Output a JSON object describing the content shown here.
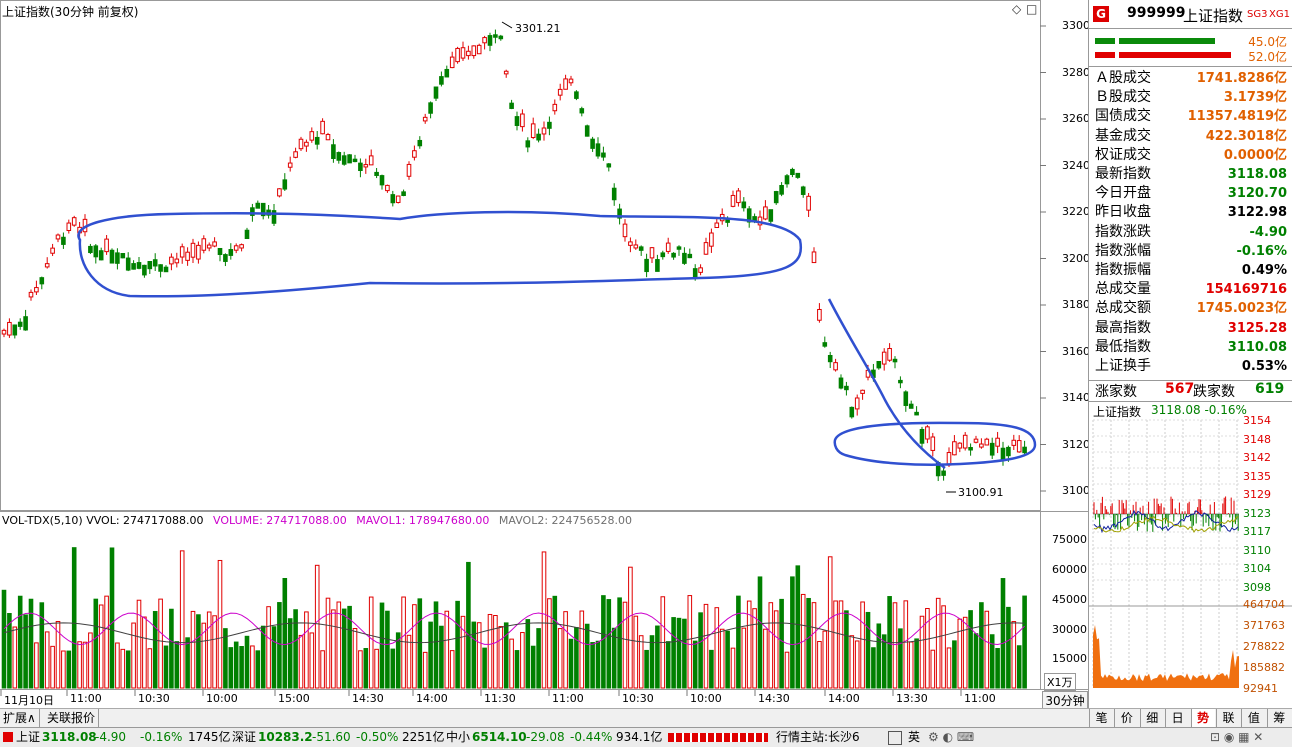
{
  "chart_title": "上证指数(30分钟 前复权)",
  "window_icons": [
    "◇",
    "□"
  ],
  "annotations": {
    "high": "3301.21",
    "low": "3100.91"
  },
  "price_axis": [
    "3300",
    "3280",
    "3260",
    "3240",
    "3220",
    "3200",
    "3180",
    "3160",
    "3140",
    "3120",
    "3100"
  ],
  "vol_header": {
    "name": "VOL-TDX(5,10)",
    "vvol": "VVOL: 274717088.00",
    "volume": "VOLUME: 274717088.00",
    "mavol1": "MAVOL1: 178947680.00",
    "mavol2": "MAVOL2: 224756528.00"
  },
  "vol_axis": [
    "75000",
    "60000",
    "45000",
    "30000",
    "15000"
  ],
  "vol_unit": "X1万",
  "time_axis": [
    "11月10日",
    "11:00",
    "10:30",
    "10:00",
    "15:00",
    "14:30",
    "14:00",
    "11:30",
    "11:00",
    "10:30",
    "10:00",
    "14:30",
    "14:00",
    "13:30",
    "11:00"
  ],
  "period_label": "30分钟",
  "colors": {
    "up": "#e00000",
    "down": "#008000",
    "circle": "#3050d0",
    "mavol1": "#cc00cc",
    "mavol2": "#404040"
  },
  "chart_data": {
    "type": "candlestick",
    "y_range": [
      3096,
      3304
    ],
    "high": 3301.21,
    "low": 3100.91,
    "volume_range": [
      0,
      85000
    ],
    "volume_unit": "X1万"
  },
  "right_panel": {
    "badge": "G",
    "code": "999999",
    "name": "上证指数",
    "tags": [
      "SG3",
      "XG1"
    ],
    "bar_values": [
      "45.0亿",
      "52.0亿"
    ],
    "rows": [
      {
        "label": "Ａ股成交",
        "value": "1741.8286亿",
        "color": "orange"
      },
      {
        "label": "Ｂ股成交",
        "value": "3.1739亿",
        "color": "orange"
      },
      {
        "label": "国债成交",
        "value": "11357.4819亿",
        "color": "orange"
      },
      {
        "label": "基金成交",
        "value": "422.3018亿",
        "color": "orange"
      },
      {
        "label": "权证成交",
        "value": "0.0000亿",
        "color": "orange"
      },
      {
        "label": "最新指数",
        "value": "3118.08",
        "color": "green"
      },
      {
        "label": "今日开盘",
        "value": "3120.70",
        "color": "green"
      },
      {
        "label": "昨日收盘",
        "value": "3122.98",
        "color": "black"
      },
      {
        "label": "指数涨跌",
        "value": "-4.90",
        "color": "green"
      },
      {
        "label": "指数涨幅",
        "value": "-0.16%",
        "color": "green"
      },
      {
        "label": "指数振幅",
        "value": "0.49%",
        "color": "black"
      },
      {
        "label": "总成交量",
        "value": "154169716",
        "color": "red"
      },
      {
        "label": "总成交额",
        "value": "1745.0023亿",
        "color": "orange"
      },
      {
        "label": "最高指数",
        "value": "3125.28",
        "color": "red"
      },
      {
        "label": "最低指数",
        "value": "3110.08",
        "color": "green"
      },
      {
        "label": "上证换手",
        "value": "0.53%",
        "color": "black"
      }
    ],
    "up_label": "涨家数",
    "up_count": "567",
    "down_label": "跌家数",
    "down_count": "619",
    "mini_title": "上证指数",
    "mini_value": "3118.08 -0.16%",
    "mini_price_axis": [
      "3154",
      "3148",
      "3142",
      "3135",
      "3129",
      "3123",
      "3117",
      "3110",
      "3104",
      "3098"
    ],
    "mini_vol_axis": [
      "464704",
      "371763",
      "278822",
      "185882",
      "92941"
    ],
    "tabs": [
      "笔",
      "价",
      "细",
      "日",
      "势",
      "联",
      "值",
      "筹"
    ],
    "active_tab": "势"
  },
  "bottom_tabs": [
    "扩展∧",
    "关联报价"
  ],
  "status_bar": {
    "sh_label": "上证",
    "sh_value": "3118.08",
    "sh_change": "-4.90",
    "sh_pct": "-0.16%",
    "sh_amount": "1745亿",
    "sz_label": "深证",
    "sz_value": "10283.2",
    "sz_change": "-51.60",
    "sz_pct": "-0.50%",
    "sz_amount": "2251亿",
    "zx_label": "中小",
    "zx_value": "6514.10",
    "zx_change": "-29.08",
    "zx_pct": "-0.44%",
    "zx_amount": "934.1亿",
    "server_label": "行情主站:长沙6",
    "ime_cn": "英"
  }
}
